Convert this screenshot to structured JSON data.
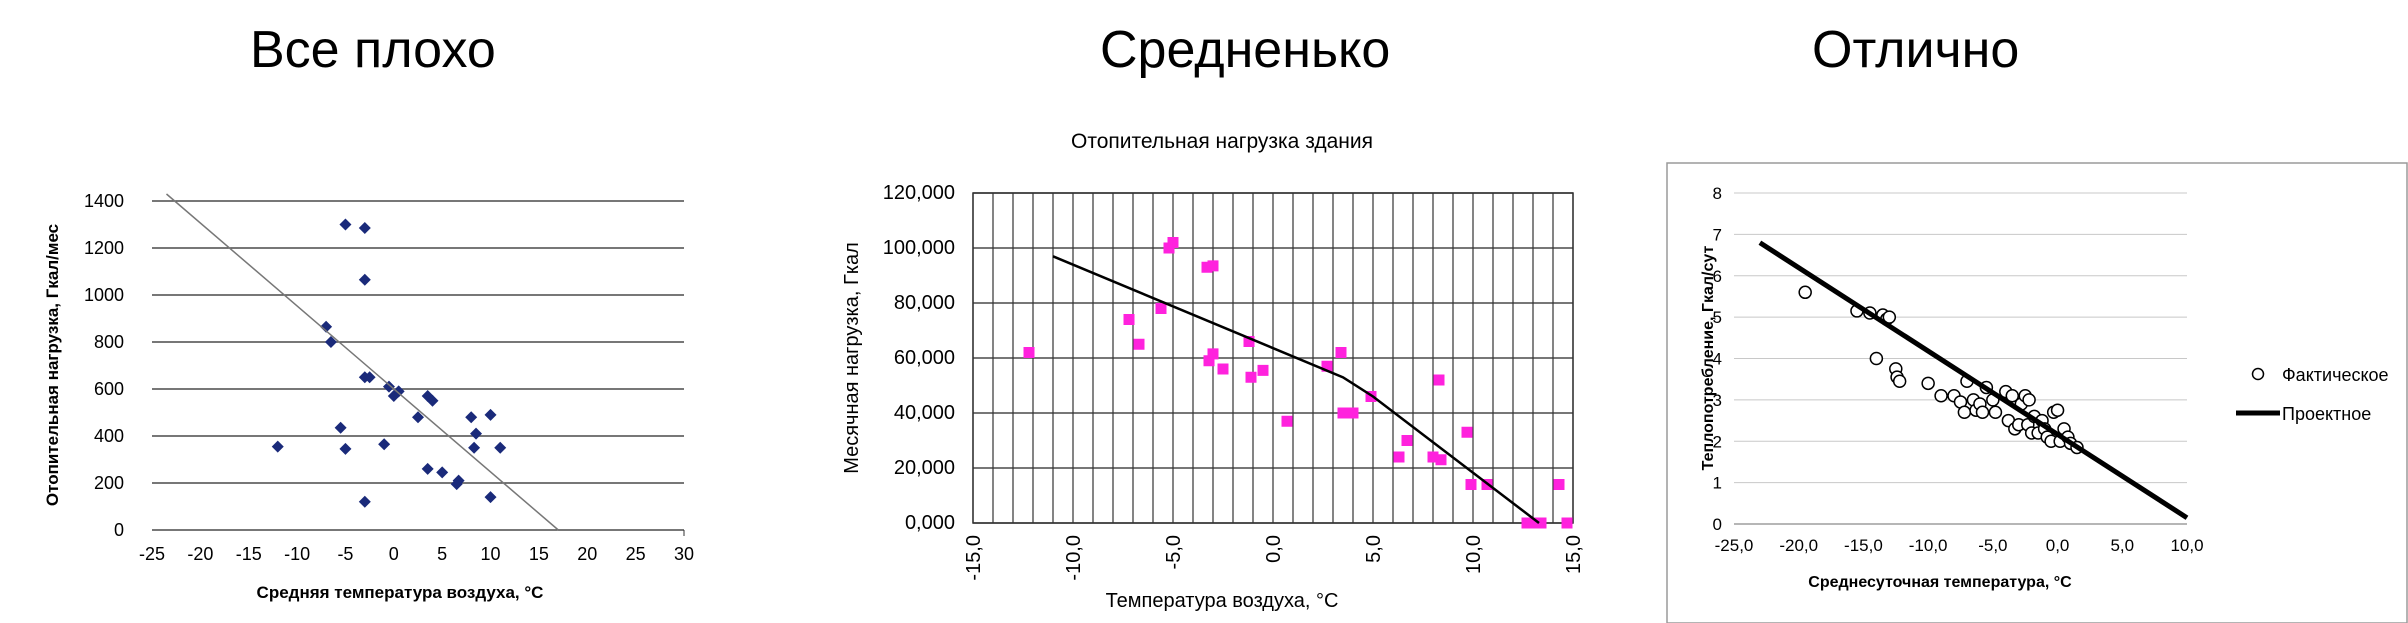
{
  "panel_titles": [
    "Все плохо",
    "Средненько",
    "Отлично"
  ],
  "chart_data": [
    {
      "type": "scatter",
      "title": "",
      "xlabel": "Средняя температура воздуха, °С",
      "ylabel": "Отопительная нагрузка, Гкал/мес",
      "xlim": [
        -25,
        30
      ],
      "ylim": [
        0,
        1400
      ],
      "x_ticks": [
        "-25",
        "-20",
        "-15",
        "-10",
        "-5",
        "0",
        "5",
        "10",
        "15",
        "20",
        "25",
        "30"
      ],
      "y_ticks": [
        "0",
        "200",
        "400",
        "600",
        "800",
        "1000",
        "1200",
        "1400"
      ],
      "grid": "horizontal",
      "marker_color": "#1a2a7a",
      "line_color": "#777777",
      "series": [
        {
          "kind": "points",
          "points": [
            [
              -12,
              355
            ],
            [
              -7,
              865
            ],
            [
              -6.5,
              800
            ],
            [
              -5.5,
              435
            ],
            [
              -5,
              345
            ],
            [
              -5,
              1300
            ],
            [
              -3,
              1285
            ],
            [
              -3,
              1065
            ],
            [
              -3,
              650
            ],
            [
              -2.5,
              650
            ],
            [
              -3,
              120
            ],
            [
              -1,
              365
            ],
            [
              -0.5,
              610
            ],
            [
              0,
              570
            ],
            [
              0.5,
              590
            ],
            [
              2.5,
              480
            ],
            [
              3.5,
              570
            ],
            [
              4,
              550
            ],
            [
              3.5,
              260
            ],
            [
              5,
              245
            ],
            [
              6.5,
              195
            ],
            [
              6.7,
              210
            ],
            [
              8,
              480
            ],
            [
              8.3,
              350
            ],
            [
              8.5,
              410
            ],
            [
              10,
              490
            ],
            [
              10,
              140
            ],
            [
              11,
              350
            ]
          ]
        },
        {
          "kind": "trend",
          "points": [
            [
              -23.5,
              1430
            ],
            [
              17,
              0
            ]
          ]
        }
      ]
    },
    {
      "type": "scatter",
      "title": "Отопительная нагрузка здания",
      "xlabel": "Температура воздуха, °С",
      "ylabel": "Месячная нагрузка, Гкал",
      "xlim": [
        -15,
        15
      ],
      "ylim": [
        0,
        120000
      ],
      "x_ticks": [
        "-15,0",
        "-10,0",
        "-5,0",
        "0,0",
        "5,0",
        "10,0",
        "15,0"
      ],
      "y_ticks": [
        "0,000",
        "20,000",
        "40,000",
        "60,000",
        "80,000",
        "100,000",
        "120,000"
      ],
      "grid": "both",
      "marker_color": "#ff22dd",
      "line_color": "#000000",
      "series": [
        {
          "kind": "points",
          "points": [
            [
              -12.2,
              62000
            ],
            [
              -7.2,
              74000
            ],
            [
              -6.7,
              65000
            ],
            [
              -5.6,
              78000
            ],
            [
              -5.2,
              100000
            ],
            [
              -5,
              102000
            ],
            [
              -3.3,
              93000
            ],
            [
              -3,
              93500
            ],
            [
              -3.2,
              59000
            ],
            [
              -3,
              61500
            ],
            [
              -2.5,
              56000
            ],
            [
              -1.2,
              66000
            ],
            [
              -1.1,
              53000
            ],
            [
              -0.5,
              55500
            ],
            [
              0.7,
              37000
            ],
            [
              2.7,
              57000
            ],
            [
              3.4,
              62000
            ],
            [
              3.5,
              40000
            ],
            [
              4,
              40000
            ],
            [
              4.9,
              46000
            ],
            [
              6.3,
              24000
            ],
            [
              6.7,
              30000
            ],
            [
              8,
              24000
            ],
            [
              8.3,
              52000
            ],
            [
              8.4,
              23000
            ],
            [
              9.7,
              33000
            ],
            [
              9.9,
              14000
            ],
            [
              10.7,
              14000
            ],
            [
              12.7,
              0
            ],
            [
              13.1,
              0
            ],
            [
              13.4,
              0
            ],
            [
              14.3,
              14000
            ],
            [
              14.7,
              0
            ]
          ]
        },
        {
          "kind": "trend",
          "points": [
            [
              -11,
              97000
            ],
            [
              3.5,
              53000
            ],
            [
              5,
              46000
            ],
            [
              13.3,
              0
            ]
          ]
        }
      ]
    },
    {
      "type": "scatter",
      "title": "",
      "xlabel": "Среднесуточная температура, °С",
      "ylabel": "Теплопотребление, Гкал/сут",
      "xlim": [
        -25,
        10
      ],
      "ylim": [
        0,
        8
      ],
      "x_ticks": [
        "-25,0",
        "-20,0",
        "-15,0",
        "-10,0",
        "-5,0",
        "0,0",
        "5,0",
        "10,0"
      ],
      "y_ticks": [
        "0",
        "1",
        "2",
        "3",
        "4",
        "5",
        "6",
        "7",
        "8"
      ],
      "grid": "horizontal",
      "marker_color": "#000000",
      "line_color": "#000000",
      "legend": [
        "Фактическое",
        "Проектное"
      ],
      "legend_position": "right",
      "series": [
        {
          "name": "Фактическое",
          "kind": "points",
          "points": [
            [
              -19.5,
              5.6
            ],
            [
              -15.5,
              5.15
            ],
            [
              -14.5,
              5.1
            ],
            [
              -13.5,
              5.05
            ],
            [
              -13.2,
              4.95
            ],
            [
              -13,
              5.0
            ],
            [
              -14,
              4.0
            ],
            [
              -12.5,
              3.75
            ],
            [
              -12.4,
              3.55
            ],
            [
              -12.2,
              3.45
            ],
            [
              -10,
              3.4
            ],
            [
              -9,
              3.1
            ],
            [
              -8,
              3.1
            ],
            [
              -7.5,
              2.95
            ],
            [
              -7.2,
              2.7
            ],
            [
              -7,
              3.45
            ],
            [
              -6.5,
              3.0
            ],
            [
              -6.3,
              2.75
            ],
            [
              -6,
              2.9
            ],
            [
              -5.8,
              2.7
            ],
            [
              -5.5,
              3.3
            ],
            [
              -5,
              3.0
            ],
            [
              -4.8,
              2.7
            ],
            [
              -4,
              3.2
            ],
            [
              -3.8,
              2.5
            ],
            [
              -3.5,
              3.1
            ],
            [
              -3.3,
              2.3
            ],
            [
              -3,
              2.4
            ],
            [
              -2.8,
              2.9
            ],
            [
              -2.5,
              3.1
            ],
            [
              -2.3,
              2.4
            ],
            [
              -2.2,
              3.0
            ],
            [
              -2,
              2.2
            ],
            [
              -1.8,
              2.6
            ],
            [
              -1.5,
              2.2
            ],
            [
              -1.2,
              2.5
            ],
            [
              -1,
              2.3
            ],
            [
              -0.8,
              2.1
            ],
            [
              -0.5,
              2.0
            ],
            [
              -0.3,
              2.7
            ],
            [
              0,
              2.75
            ],
            [
              0.2,
              2.0
            ],
            [
              0.5,
              2.3
            ],
            [
              0.8,
              2.1
            ],
            [
              1,
              1.95
            ],
            [
              1.5,
              1.85
            ]
          ]
        },
        {
          "name": "Проектное",
          "kind": "trend",
          "points": [
            [
              -23,
              6.8
            ],
            [
              10,
              0.15
            ]
          ]
        }
      ]
    }
  ]
}
